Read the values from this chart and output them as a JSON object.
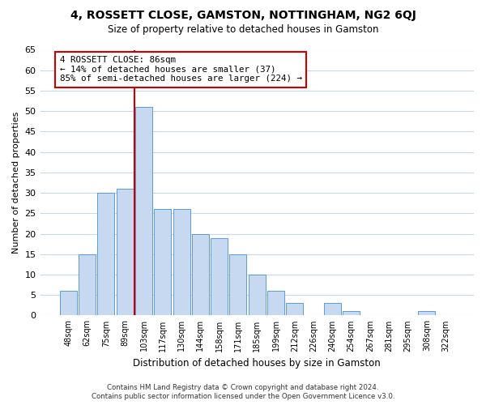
{
  "title": "4, ROSSETT CLOSE, GAMSTON, NOTTINGHAM, NG2 6QJ",
  "subtitle": "Size of property relative to detached houses in Gamston",
  "xlabel": "Distribution of detached houses by size in Gamston",
  "ylabel": "Number of detached properties",
  "bar_labels": [
    "48sqm",
    "62sqm",
    "75sqm",
    "89sqm",
    "103sqm",
    "117sqm",
    "130sqm",
    "144sqm",
    "158sqm",
    "171sqm",
    "185sqm",
    "199sqm",
    "212sqm",
    "226sqm",
    "240sqm",
    "254sqm",
    "267sqm",
    "281sqm",
    "295sqm",
    "308sqm",
    "322sqm"
  ],
  "bar_values": [
    6,
    15,
    30,
    31,
    51,
    26,
    26,
    20,
    19,
    15,
    10,
    6,
    3,
    0,
    3,
    1,
    0,
    0,
    0,
    1,
    0
  ],
  "bar_color": "#c6d9f0",
  "bar_edge_color": "#5b9bd5",
  "vline_x": 3.5,
  "vline_color": "#cc0000",
  "annotation_title": "4 ROSSETT CLOSE: 86sqm",
  "annotation_line1": "← 14% of detached houses are smaller (37)",
  "annotation_line2": "85% of semi-detached houses are larger (224) →",
  "annotation_box_color": "#ffffff",
  "annotation_box_edge": "#cc0000",
  "ylim": [
    0,
    65
  ],
  "yticks": [
    0,
    5,
    10,
    15,
    20,
    25,
    30,
    35,
    40,
    45,
    50,
    55,
    60,
    65
  ],
  "footer_line1": "Contains HM Land Registry data © Crown copyright and database right 2024.",
  "footer_line2": "Contains public sector information licensed under the Open Government Licence v3.0.",
  "bg_color": "#ffffff",
  "grid_color": "#c8d8ea"
}
